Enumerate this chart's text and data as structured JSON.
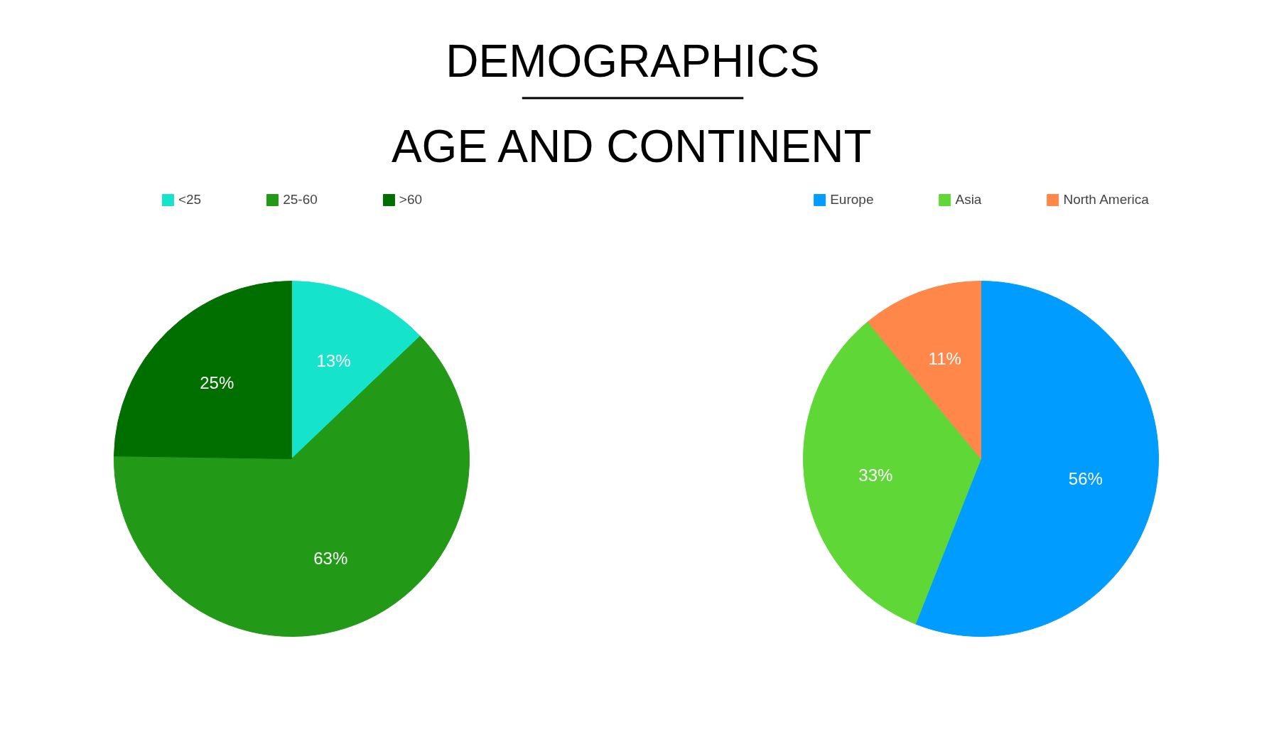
{
  "chart_data": [
    {
      "type": "pie",
      "title": "DEMOGRAPHICS",
      "subtitle": "AGE AND CONTINENT",
      "categories": [
        "<25",
        "25-60",
        ">60"
      ],
      "values": [
        13,
        63,
        25
      ],
      "colors": [
        "#16e3cc",
        "#229a18",
        "#006f00"
      ],
      "legend": "top",
      "value_labels": [
        "13%",
        "63%",
        "25%"
      ]
    },
    {
      "type": "pie",
      "categories": [
        "Europe",
        "Asia",
        "North America"
      ],
      "values": [
        56,
        33,
        11
      ],
      "colors": [
        "#009cff",
        "#5fd837",
        "#ff874a"
      ],
      "legend": "top",
      "value_labels": [
        "56%",
        "33%",
        "11%"
      ]
    }
  ]
}
